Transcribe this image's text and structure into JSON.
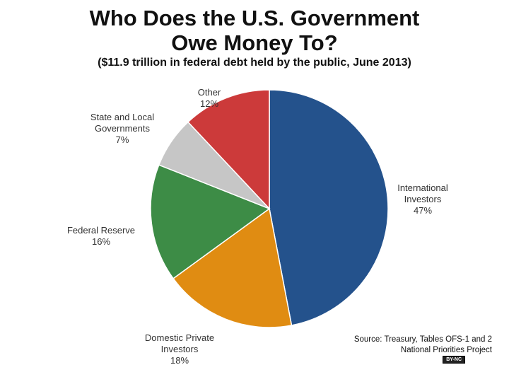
{
  "chart_data": {
    "type": "pie",
    "title": "Who Does the U.S. Government Owe Money To?",
    "subtitle": "($11.9 trillion in federal debt held by the public, June 2013)",
    "categories": [
      "International Investors",
      "Domestic Private Investors",
      "Federal Reserve",
      "State and Local Governments",
      "Other"
    ],
    "values": [
      47,
      18,
      16,
      7,
      12
    ],
    "value_labels": [
      "47%",
      "18%",
      "16%",
      "7%",
      "12%"
    ],
    "colors": [
      "#24528c",
      "#e08c12",
      "#3d8c46",
      "#c6c6c6",
      "#cc3a3a"
    ],
    "source": [
      "Source: Treasury, Tables OFS-1 and 2",
      "National Priorities Project"
    ],
    "license": "BY-NC"
  }
}
